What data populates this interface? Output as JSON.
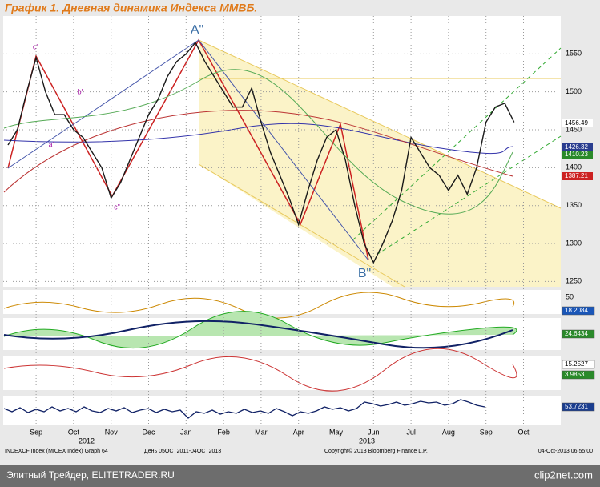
{
  "title": "График 1.   Дневная динамика Индекса ММВБ.",
  "chart_data": {
    "type": "line",
    "categories": [
      null,
      null,
      null,
      "Sep",
      null,
      null,
      null,
      "Oct",
      null,
      null,
      null,
      "Nov",
      null,
      null,
      null,
      "Dec",
      null,
      null,
      null,
      "Jan",
      null,
      null,
      null,
      "Feb",
      null,
      null,
      null,
      "Mar",
      null,
      null,
      null,
      "Apr",
      null,
      null,
      null,
      "May",
      null,
      null,
      null,
      "Jun",
      null,
      null,
      null,
      "Jul",
      null,
      null,
      null,
      "Aug",
      null,
      null,
      null,
      "Sep",
      null,
      null,
      null,
      "Oct",
      null
    ],
    "series": [
      {
        "name": "INDEXCF Index (MICEX Index)",
        "color": "#1a1a1a",
        "values": [
          1430,
          1450,
          1500,
          1545,
          1500,
          1470,
          1470,
          1450,
          1440,
          1420,
          1400,
          1360,
          1380,
          1410,
          1440,
          1470,
          1490,
          1520,
          1540,
          1550,
          1565,
          1540,
          1520,
          1500,
          1480,
          1480,
          1505,
          1460,
          1420,
          1390,
          1360,
          1325,
          1370,
          1410,
          1440,
          1450,
          1410,
          1350,
          1300,
          1275,
          1300,
          1330,
          1370,
          1440,
          1420,
          1400,
          1390,
          1370,
          1390,
          1365,
          1400,
          1460,
          1480,
          1485,
          1460,
          null,
          null
        ]
      }
    ],
    "ylim": [
      1243,
      1600
    ],
    "yticks": [
      1250,
      1300,
      1350,
      1400,
      1450,
      1500,
      1550
    ],
    "grid": true,
    "years": [
      "2012",
      "2013"
    ],
    "last_values": [
      1456.49,
      1426.32,
      1410.23,
      1387.21
    ],
    "annotations": [
      "A\"",
      "B\"",
      "c'",
      "c\"",
      "a'",
      "b'"
    ]
  },
  "indicators": {
    "tick": 50,
    "values": [
      18.2084,
      24.6434,
      15.2527,
      3.9853,
      53.7231
    ]
  },
  "info": [
    "INDEXCF Index (MICEX Index) Graph 64",
    "День 05OCT2011-04OCT2013",
    "Copyright© 2013 Bloomberg Finance L.P.",
    "04-Oct-2013 06:55:00"
  ],
  "footer": {
    "left": "Элитный Трейдер, ELITETRADER.RU",
    "right": "clip2net.com"
  }
}
